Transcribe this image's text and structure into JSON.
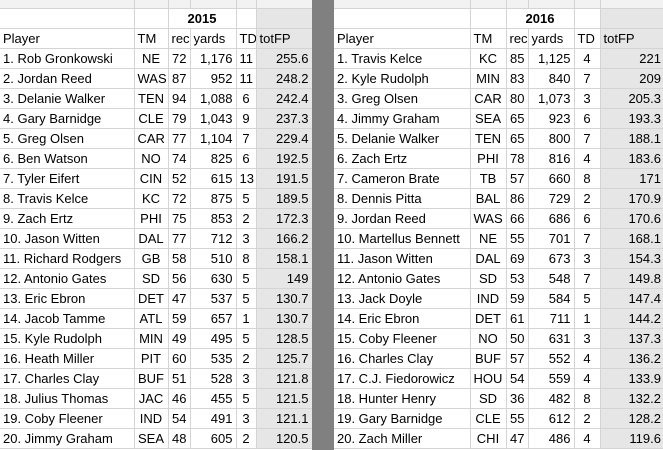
{
  "tables": [
    {
      "year": "2015",
      "headers": [
        "Player",
        "TM",
        "rec",
        "yards",
        "TD",
        "totFP"
      ],
      "rows": [
        [
          "1. Rob Gronkowski",
          "NE",
          "72",
          "1,176",
          "11",
          "255.6"
        ],
        [
          "2. Jordan Reed",
          "WAS",
          "87",
          "952",
          "11",
          "248.2"
        ],
        [
          "3. Delanie Walker",
          "TEN",
          "94",
          "1,088",
          "6",
          "242.4"
        ],
        [
          "4. Gary Barnidge",
          "CLE",
          "79",
          "1,043",
          "9",
          "237.3"
        ],
        [
          "5. Greg Olsen",
          "CAR",
          "77",
          "1,104",
          "7",
          "229.4"
        ],
        [
          "6. Ben Watson",
          "NO",
          "74",
          "825",
          "6",
          "192.5"
        ],
        [
          "7. Tyler Eifert",
          "CIN",
          "52",
          "615",
          "13",
          "191.5"
        ],
        [
          "8. Travis Kelce",
          "KC",
          "72",
          "875",
          "5",
          "189.5"
        ],
        [
          "9. Zach Ertz",
          "PHI",
          "75",
          "853",
          "2",
          "172.3"
        ],
        [
          "10. Jason Witten",
          "DAL",
          "77",
          "712",
          "3",
          "166.2"
        ],
        [
          "11. Richard Rodgers",
          "GB",
          "58",
          "510",
          "8",
          "158.1"
        ],
        [
          "12. Antonio Gates",
          "SD",
          "56",
          "630",
          "5",
          "149"
        ],
        [
          "13. Eric Ebron",
          "DET",
          "47",
          "537",
          "5",
          "130.7"
        ],
        [
          "14. Jacob Tamme",
          "ATL",
          "59",
          "657",
          "1",
          "130.7"
        ],
        [
          "15. Kyle Rudolph",
          "MIN",
          "49",
          "495",
          "5",
          "128.5"
        ],
        [
          "16. Heath Miller",
          "PIT",
          "60",
          "535",
          "2",
          "125.7"
        ],
        [
          "17. Charles Clay",
          "BUF",
          "51",
          "528",
          "3",
          "121.8"
        ],
        [
          "18. Julius Thomas",
          "JAC",
          "46",
          "455",
          "5",
          "121.5"
        ],
        [
          "19. Coby Fleener",
          "IND",
          "54",
          "491",
          "3",
          "121.1"
        ],
        [
          "20. Jimmy Graham",
          "SEA",
          "48",
          "605",
          "2",
          "120.5"
        ]
      ]
    },
    {
      "year": "2016",
      "headers": [
        "Player",
        "TM",
        "rec",
        "yards",
        "TD",
        "totFP"
      ],
      "rows": [
        [
          "1. Travis Kelce",
          "KC",
          "85",
          "1,125",
          "4",
          "221"
        ],
        [
          "2. Kyle Rudolph",
          "MIN",
          "83",
          "840",
          "7",
          "209"
        ],
        [
          "3. Greg Olsen",
          "CAR",
          "80",
          "1,073",
          "3",
          "205.3"
        ],
        [
          "4. Jimmy Graham",
          "SEA",
          "65",
          "923",
          "6",
          "193.3"
        ],
        [
          "5. Delanie Walker",
          "TEN",
          "65",
          "800",
          "7",
          "188.1"
        ],
        [
          "6. Zach Ertz",
          "PHI",
          "78",
          "816",
          "4",
          "183.6"
        ],
        [
          "7. Cameron Brate",
          "TB",
          "57",
          "660",
          "8",
          "171"
        ],
        [
          "8. Dennis Pitta",
          "BAL",
          "86",
          "729",
          "2",
          "170.9"
        ],
        [
          "9. Jordan Reed",
          "WAS",
          "66",
          "686",
          "6",
          "170.6"
        ],
        [
          "10. Martellus Bennett",
          "NE",
          "55",
          "701",
          "7",
          "168.1"
        ],
        [
          "11. Jason Witten",
          "DAL",
          "69",
          "673",
          "3",
          "154.3"
        ],
        [
          "12. Antonio Gates",
          "SD",
          "53",
          "548",
          "7",
          "149.8"
        ],
        [
          "13. Jack Doyle",
          "IND",
          "59",
          "584",
          "5",
          "147.4"
        ],
        [
          "14. Eric Ebron",
          "DET",
          "61",
          "711",
          "1",
          "144.2"
        ],
        [
          "15. Coby Fleener",
          "NO",
          "50",
          "631",
          "3",
          "137.3"
        ],
        [
          "16. Charles Clay",
          "BUF",
          "57",
          "552",
          "4",
          "136.2"
        ],
        [
          "17. C.J. Fiedorowicz",
          "HOU",
          "54",
          "559",
          "4",
          "133.9"
        ],
        [
          "18. Hunter Henry",
          "SD",
          "36",
          "482",
          "8",
          "132.2"
        ],
        [
          "19. Gary Barnidge",
          "CLE",
          "55",
          "612",
          "2",
          "128.2"
        ],
        [
          "20. Zach Miller",
          "CHI",
          "47",
          "486",
          "4",
          "119.6"
        ]
      ]
    }
  ]
}
